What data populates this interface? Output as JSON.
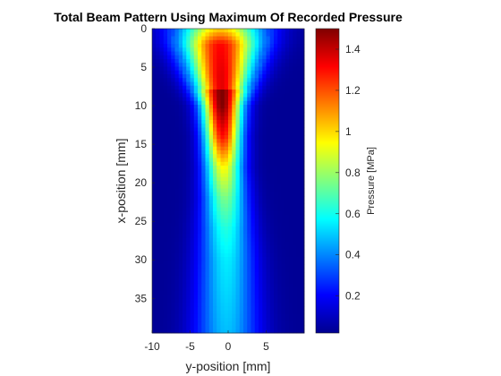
{
  "chart_data": {
    "type": "heatmap",
    "title": "Total Beam Pattern Using Maximum Of Recorded Pressure",
    "xlabel": "y-position [mm]",
    "ylabel": "x-position [mm]",
    "xlim": [
      -10,
      10
    ],
    "ylim": [
      0,
      39.5
    ],
    "y_axis_reversed": true,
    "x_ticks": [
      -10,
      -5,
      0,
      5
    ],
    "y_ticks": [
      0,
      5,
      10,
      15,
      20,
      25,
      30,
      35
    ],
    "colormap": "jet",
    "colorbar": {
      "label": "Pressure [MPa]",
      "range": [
        0.02,
        1.5
      ],
      "ticks": [
        0.2,
        0.4,
        0.6,
        0.8,
        1,
        1.2,
        1.4
      ]
    },
    "beam_profile": {
      "axis_y": [
        -1.0,
        -1.0,
        -0.9,
        -0.8,
        -0.7,
        -0.6,
        -0.4,
        -0.3,
        -0.2,
        -0.2
      ],
      "depth": [
        0,
        2,
        6,
        10,
        14,
        18,
        22,
        26,
        30,
        39.5
      ],
      "peak_pressure": [
        1.1,
        1.45,
        1.5,
        1.5,
        1.3,
        0.95,
        0.75,
        0.62,
        0.55,
        0.48
      ],
      "half_width": [
        5.5,
        5.0,
        3.8,
        2.6,
        2.4,
        2.5,
        2.8,
        3.2,
        3.6,
        4.2
      ]
    }
  }
}
